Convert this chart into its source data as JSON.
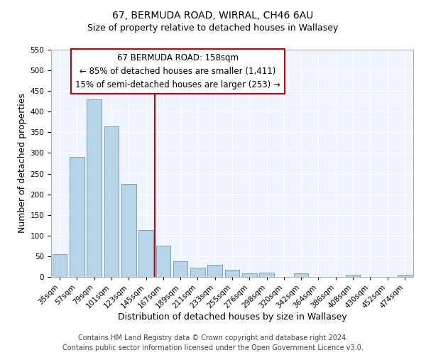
{
  "title": "67, BERMUDA ROAD, WIRRAL, CH46 6AU",
  "subtitle": "Size of property relative to detached houses in Wallasey",
  "xlabel": "Distribution of detached houses by size in Wallasey",
  "ylabel": "Number of detached properties",
  "bar_labels": [
    "35sqm",
    "57sqm",
    "79sqm",
    "101sqm",
    "123sqm",
    "145sqm",
    "167sqm",
    "189sqm",
    "211sqm",
    "233sqm",
    "255sqm",
    "276sqm",
    "298sqm",
    "320sqm",
    "342sqm",
    "364sqm",
    "386sqm",
    "408sqm",
    "430sqm",
    "452sqm",
    "474sqm"
  ],
  "bar_values": [
    55,
    290,
    430,
    365,
    225,
    113,
    75,
    38,
    22,
    29,
    17,
    9,
    10,
    0,
    9,
    0,
    0,
    5,
    0,
    0,
    5
  ],
  "bar_color": "#b8d4e8",
  "bar_edge_color": "#6699bb",
  "vline_x": 6,
  "vline_color": "#cc0000",
  "ylim": [
    0,
    550
  ],
  "yticks": [
    0,
    50,
    100,
    150,
    200,
    250,
    300,
    350,
    400,
    450,
    500,
    550
  ],
  "annotation_title": "67 BERMUDA ROAD: 158sqm",
  "annotation_line1": "← 85% of detached houses are smaller (1,411)",
  "annotation_line2": "15% of semi-detached houses are larger (253) →",
  "annotation_box_color": "#ffffff",
  "annotation_box_edge": "#cc0000",
  "footer_line1": "Contains HM Land Registry data © Crown copyright and database right 2024.",
  "footer_line2": "Contains public sector information licensed under the Open Government Licence v3.0.",
  "title_fontsize": 10,
  "subtitle_fontsize": 9,
  "axis_label_fontsize": 9,
  "tick_fontsize": 7.5,
  "annotation_fontsize": 8.5,
  "footer_fontsize": 7
}
